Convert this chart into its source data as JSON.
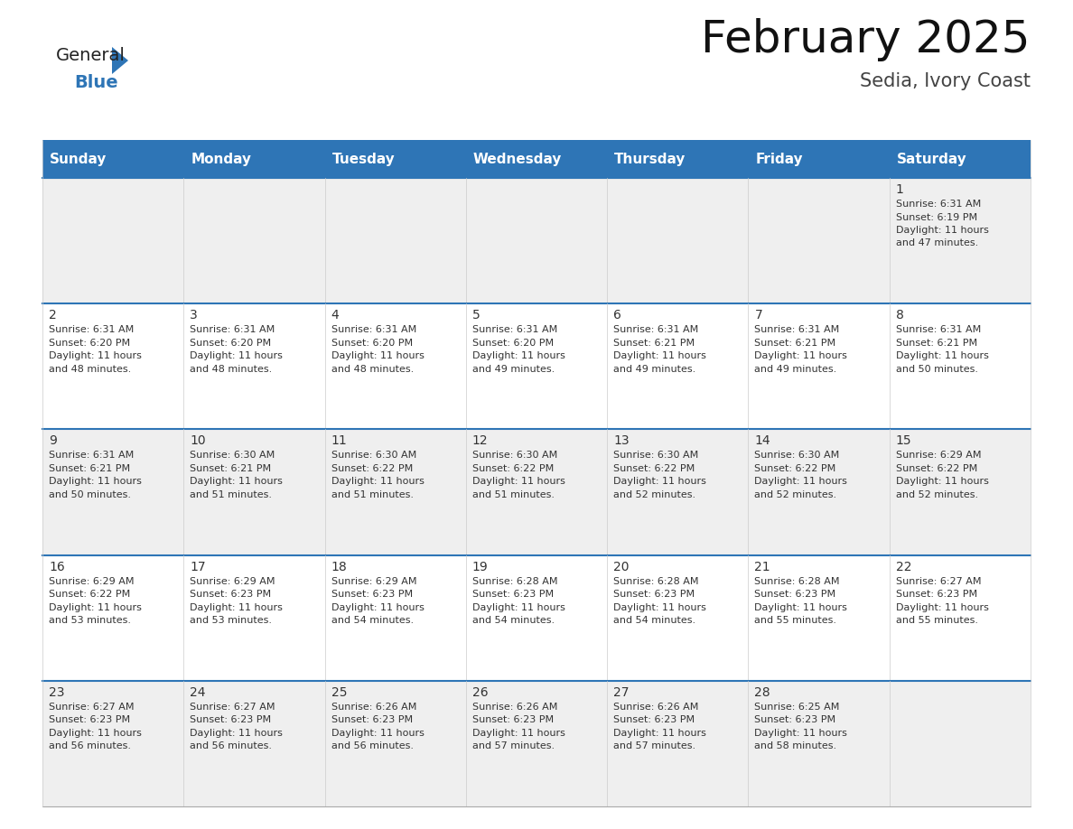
{
  "title": "February 2025",
  "subtitle": "Sedia, Ivory Coast",
  "header_bg": "#2E75B6",
  "header_text_color": "#FFFFFF",
  "cell_bg_white": "#FFFFFF",
  "cell_bg_light": "#EFEFEF",
  "border_color_blue": "#2E5F8A",
  "border_color_light": "#CCCCCC",
  "text_color": "#333333",
  "day_number_color": "#333333",
  "days_of_week": [
    "Sunday",
    "Monday",
    "Tuesday",
    "Wednesday",
    "Thursday",
    "Friday",
    "Saturday"
  ],
  "calendar": [
    [
      null,
      null,
      null,
      null,
      null,
      null,
      1
    ],
    [
      2,
      3,
      4,
      5,
      6,
      7,
      8
    ],
    [
      9,
      10,
      11,
      12,
      13,
      14,
      15
    ],
    [
      16,
      17,
      18,
      19,
      20,
      21,
      22
    ],
    [
      23,
      24,
      25,
      26,
      27,
      28,
      null
    ]
  ],
  "cell_data": {
    "1": {
      "sunrise": "6:31 AM",
      "sunset": "6:19 PM",
      "daylight_line1": "Daylight: 11 hours",
      "daylight_line2": "and 47 minutes."
    },
    "2": {
      "sunrise": "6:31 AM",
      "sunset": "6:20 PM",
      "daylight_line1": "Daylight: 11 hours",
      "daylight_line2": "and 48 minutes."
    },
    "3": {
      "sunrise": "6:31 AM",
      "sunset": "6:20 PM",
      "daylight_line1": "Daylight: 11 hours",
      "daylight_line2": "and 48 minutes."
    },
    "4": {
      "sunrise": "6:31 AM",
      "sunset": "6:20 PM",
      "daylight_line1": "Daylight: 11 hours",
      "daylight_line2": "and 48 minutes."
    },
    "5": {
      "sunrise": "6:31 AM",
      "sunset": "6:20 PM",
      "daylight_line1": "Daylight: 11 hours",
      "daylight_line2": "and 49 minutes."
    },
    "6": {
      "sunrise": "6:31 AM",
      "sunset": "6:21 PM",
      "daylight_line1": "Daylight: 11 hours",
      "daylight_line2": "and 49 minutes."
    },
    "7": {
      "sunrise": "6:31 AM",
      "sunset": "6:21 PM",
      "daylight_line1": "Daylight: 11 hours",
      "daylight_line2": "and 49 minutes."
    },
    "8": {
      "sunrise": "6:31 AM",
      "sunset": "6:21 PM",
      "daylight_line1": "Daylight: 11 hours",
      "daylight_line2": "and 50 minutes."
    },
    "9": {
      "sunrise": "6:31 AM",
      "sunset": "6:21 PM",
      "daylight_line1": "Daylight: 11 hours",
      "daylight_line2": "and 50 minutes."
    },
    "10": {
      "sunrise": "6:30 AM",
      "sunset": "6:21 PM",
      "daylight_line1": "Daylight: 11 hours",
      "daylight_line2": "and 51 minutes."
    },
    "11": {
      "sunrise": "6:30 AM",
      "sunset": "6:22 PM",
      "daylight_line1": "Daylight: 11 hours",
      "daylight_line2": "and 51 minutes."
    },
    "12": {
      "sunrise": "6:30 AM",
      "sunset": "6:22 PM",
      "daylight_line1": "Daylight: 11 hours",
      "daylight_line2": "and 51 minutes."
    },
    "13": {
      "sunrise": "6:30 AM",
      "sunset": "6:22 PM",
      "daylight_line1": "Daylight: 11 hours",
      "daylight_line2": "and 52 minutes."
    },
    "14": {
      "sunrise": "6:30 AM",
      "sunset": "6:22 PM",
      "daylight_line1": "Daylight: 11 hours",
      "daylight_line2": "and 52 minutes."
    },
    "15": {
      "sunrise": "6:29 AM",
      "sunset": "6:22 PM",
      "daylight_line1": "Daylight: 11 hours",
      "daylight_line2": "and 52 minutes."
    },
    "16": {
      "sunrise": "6:29 AM",
      "sunset": "6:22 PM",
      "daylight_line1": "Daylight: 11 hours",
      "daylight_line2": "and 53 minutes."
    },
    "17": {
      "sunrise": "6:29 AM",
      "sunset": "6:23 PM",
      "daylight_line1": "Daylight: 11 hours",
      "daylight_line2": "and 53 minutes."
    },
    "18": {
      "sunrise": "6:29 AM",
      "sunset": "6:23 PM",
      "daylight_line1": "Daylight: 11 hours",
      "daylight_line2": "and 54 minutes."
    },
    "19": {
      "sunrise": "6:28 AM",
      "sunset": "6:23 PM",
      "daylight_line1": "Daylight: 11 hours",
      "daylight_line2": "and 54 minutes."
    },
    "20": {
      "sunrise": "6:28 AM",
      "sunset": "6:23 PM",
      "daylight_line1": "Daylight: 11 hours",
      "daylight_line2": "and 54 minutes."
    },
    "21": {
      "sunrise": "6:28 AM",
      "sunset": "6:23 PM",
      "daylight_line1": "Daylight: 11 hours",
      "daylight_line2": "and 55 minutes."
    },
    "22": {
      "sunrise": "6:27 AM",
      "sunset": "6:23 PM",
      "daylight_line1": "Daylight: 11 hours",
      "daylight_line2": "and 55 minutes."
    },
    "23": {
      "sunrise": "6:27 AM",
      "sunset": "6:23 PM",
      "daylight_line1": "Daylight: 11 hours",
      "daylight_line2": "and 56 minutes."
    },
    "24": {
      "sunrise": "6:27 AM",
      "sunset": "6:23 PM",
      "daylight_line1": "Daylight: 11 hours",
      "daylight_line2": "and 56 minutes."
    },
    "25": {
      "sunrise": "6:26 AM",
      "sunset": "6:23 PM",
      "daylight_line1": "Daylight: 11 hours",
      "daylight_line2": "and 56 minutes."
    },
    "26": {
      "sunrise": "6:26 AM",
      "sunset": "6:23 PM",
      "daylight_line1": "Daylight: 11 hours",
      "daylight_line2": "and 57 minutes."
    },
    "27": {
      "sunrise": "6:26 AM",
      "sunset": "6:23 PM",
      "daylight_line1": "Daylight: 11 hours",
      "daylight_line2": "and 57 minutes."
    },
    "28": {
      "sunrise": "6:25 AM",
      "sunset": "6:23 PM",
      "daylight_line1": "Daylight: 11 hours",
      "daylight_line2": "and 58 minutes."
    }
  },
  "logo_general_color": "#222222",
  "logo_blue_color": "#2E75B6",
  "title_fontsize": 36,
  "subtitle_fontsize": 15,
  "dow_fontsize": 11,
  "day_num_fontsize": 10,
  "cell_text_fontsize": 8
}
